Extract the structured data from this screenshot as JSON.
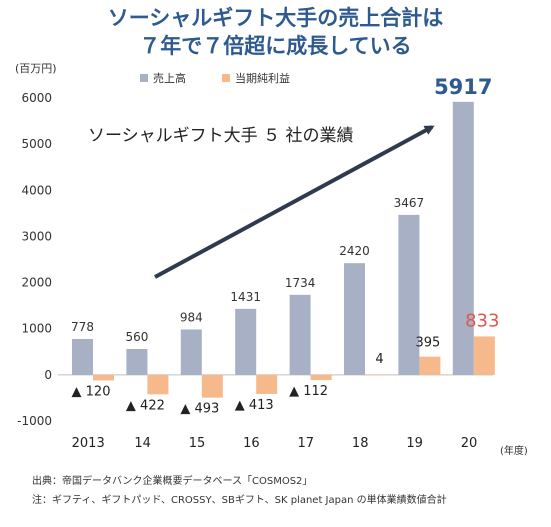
{
  "chart_data": {
    "type": "bar",
    "title_lines": [
      "ソーシャルギフト大手の売上合計は",
      "７年で７倍超に成長している"
    ],
    "ylabel": "(百万円)",
    "xlabel": "(年度)",
    "ylim": [
      -1000,
      6000
    ],
    "yticks": [
      -1000,
      0,
      1000,
      2000,
      3000,
      4000,
      5000,
      6000
    ],
    "grid": false,
    "legend_position": "top",
    "categories": [
      "2013",
      "14",
      "15",
      "16",
      "17",
      "18",
      "19",
      "20"
    ],
    "series": [
      {
        "name": "売上高",
        "color": "#a7b0c4",
        "values": [
          778,
          560,
          984,
          1431,
          1734,
          2420,
          3467,
          5917
        ],
        "labels": [
          "778",
          "560",
          "984",
          "1431",
          "1734",
          "2420",
          "3467",
          "5917"
        ]
      },
      {
        "name": "当期純利益",
        "color": "#f5b98b",
        "values": [
          -120,
          -422,
          -493,
          -413,
          -112,
          4,
          395,
          833
        ],
        "labels": [
          "▲ 120",
          "▲ 422",
          "▲ 493",
          "▲ 413",
          "▲ 112",
          "4",
          "395",
          "833"
        ]
      }
    ],
    "annotation": "ソーシャルギフト大手 ５ 社の業績",
    "arrow_color": "#2f3a4f",
    "highlight_colors": {
      "revenue_last": "#2e5a8f",
      "profit_last": "#e0584a"
    }
  },
  "footnotes": {
    "source": "出典：帝国データバンク企業概要データベース「COSMOS2」",
    "note": "注：ギフティ、ギフトパッド、CROSSY、SBギフト、SK planet Japan の単体業績数値合計"
  }
}
